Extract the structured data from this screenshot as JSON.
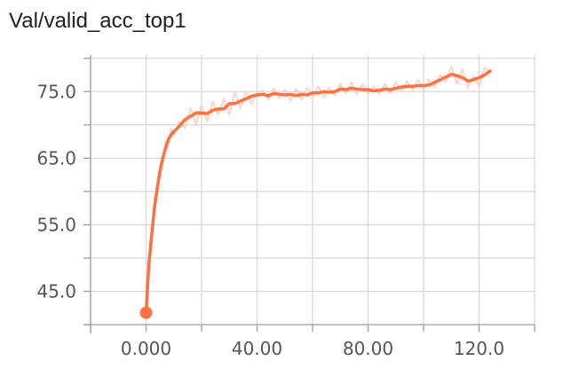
{
  "chart_data": {
    "type": "line",
    "title": "Val/valid_acc_top1",
    "x_ticks": [
      0,
      40,
      80,
      120
    ],
    "x_tick_labels": [
      "0.000",
      "40.00",
      "80.00",
      "120.0"
    ],
    "y_ticks": [
      45,
      55,
      65,
      75
    ],
    "y_tick_labels": [
      "45.0",
      "55.0",
      "65.0",
      "75.0"
    ],
    "xlim": [
      -20,
      140
    ],
    "ylim": [
      40,
      80.5
    ],
    "grid": true,
    "colors": {
      "smoothed": "#ff7043",
      "raw": "#ffccbc",
      "grid": "#d9d9d9"
    },
    "series": [
      {
        "style": "smoothed",
        "x": [
          0,
          1,
          2,
          3,
          4,
          5,
          6,
          7,
          8,
          9,
          10,
          12,
          14,
          16,
          18,
          20,
          22,
          24,
          26,
          28,
          30,
          32,
          34,
          36,
          38,
          40,
          42,
          44,
          46,
          48,
          50,
          52,
          54,
          56,
          58,
          60,
          62,
          64,
          66,
          68,
          70,
          72,
          74,
          76,
          78,
          80,
          82,
          84,
          86,
          88,
          90,
          92,
          94,
          96,
          98,
          100,
          102,
          104,
          106,
          108,
          110,
          112,
          114,
          116,
          118,
          120,
          122,
          124
        ],
        "y": [
          41.8,
          49,
          53.5,
          57.5,
          60.5,
          63,
          65,
          66.5,
          67.8,
          68.5,
          69,
          69.8,
          70.8,
          71.3,
          71.8,
          71.8,
          71.7,
          72.2,
          72.4,
          72.4,
          73.2,
          73.2,
          73.6,
          73.9,
          74.3,
          74.5,
          74.6,
          74.4,
          74.7,
          74.6,
          74.5,
          74.6,
          74.4,
          74.6,
          74.5,
          74.8,
          74.8,
          75.0,
          74.9,
          75.0,
          75.4,
          75.3,
          75.5,
          75.4,
          75.3,
          75.3,
          75.1,
          75.2,
          75.4,
          75.3,
          75.5,
          75.7,
          75.8,
          75.8,
          75.9,
          75.9,
          76.0,
          76.4,
          76.8,
          77.2,
          77.6,
          77.4,
          77.1,
          76.6,
          76.8,
          77.1,
          77.5,
          78.1
        ]
      },
      {
        "style": "raw",
        "x": [
          0,
          1,
          2,
          3,
          4,
          5,
          6,
          7,
          8,
          9,
          10,
          12,
          14,
          16,
          18,
          20,
          22,
          24,
          26,
          28,
          30,
          32,
          34,
          36,
          38,
          40,
          42,
          44,
          46,
          48,
          50,
          52,
          54,
          56,
          58,
          60,
          62,
          64,
          66,
          68,
          70,
          72,
          74,
          76,
          78,
          80,
          82,
          84,
          86,
          88,
          90,
          92,
          94,
          96,
          98,
          100,
          102,
          104,
          106,
          108,
          110,
          112,
          114,
          116,
          118,
          120,
          122,
          124
        ],
        "y": [
          41.8,
          50,
          52,
          59,
          59.5,
          64,
          64.5,
          67.5,
          67,
          69.5,
          68.5,
          70.5,
          69.5,
          72.5,
          70,
          73,
          70.5,
          73.5,
          71.5,
          74,
          71.5,
          75,
          72.5,
          75,
          73.2,
          74.8,
          75.2,
          73.8,
          75.5,
          74,
          75.3,
          73.6,
          75.4,
          73.8,
          75.6,
          74.2,
          75.8,
          74.2,
          75.6,
          74.4,
          76.2,
          74.8,
          76.4,
          74.6,
          76.2,
          74.8,
          75.8,
          74.6,
          76.2,
          74.8,
          76.4,
          75.0,
          76.6,
          75.2,
          76.8,
          75.3,
          76.8,
          75.6,
          77.6,
          76.4,
          78.8,
          76.2,
          78.4,
          75.6,
          77.4,
          75.8,
          78.6,
          77.8
        ]
      }
    ]
  }
}
